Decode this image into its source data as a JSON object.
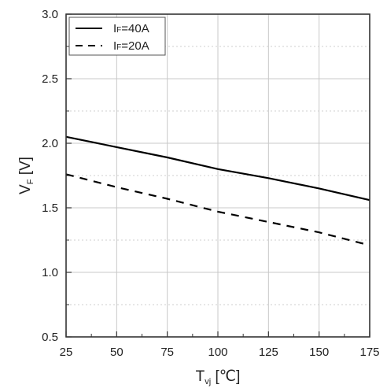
{
  "chart_data": {
    "type": "line",
    "x_tick_labels": [
      "25",
      "50",
      "75",
      "100",
      "125",
      "150",
      "175"
    ],
    "y_tick_labels": [
      "0.5",
      "1.0",
      "1.5",
      "2.0",
      "2.5",
      "3.0"
    ],
    "xlim": [
      25,
      175
    ],
    "ylim": [
      0.5,
      3.0
    ],
    "xlabel": {
      "main": "T",
      "sub": "vj",
      "unit": " [℃]"
    },
    "ylabel": {
      "main": "V",
      "sub": "F",
      "unit": " [V]"
    },
    "grid": true,
    "legend_position": "top-left",
    "series": [
      {
        "name": "IF=40A",
        "legend": {
          "main": "I",
          "sub": "F",
          "rest": "=40A"
        },
        "style": "solid",
        "color": "#000000",
        "x": [
          25,
          50,
          75,
          100,
          125,
          150,
          175
        ],
        "y": [
          2.05,
          1.97,
          1.89,
          1.8,
          1.73,
          1.65,
          1.56
        ]
      },
      {
        "name": "IF=20A",
        "legend": {
          "main": "I",
          "sub": "F",
          "rest": "=20A"
        },
        "style": "dashed",
        "color": "#000000",
        "x": [
          25,
          50,
          75,
          100,
          125,
          150,
          175
        ],
        "y": [
          1.76,
          1.66,
          1.57,
          1.47,
          1.39,
          1.31,
          1.21
        ]
      }
    ]
  }
}
